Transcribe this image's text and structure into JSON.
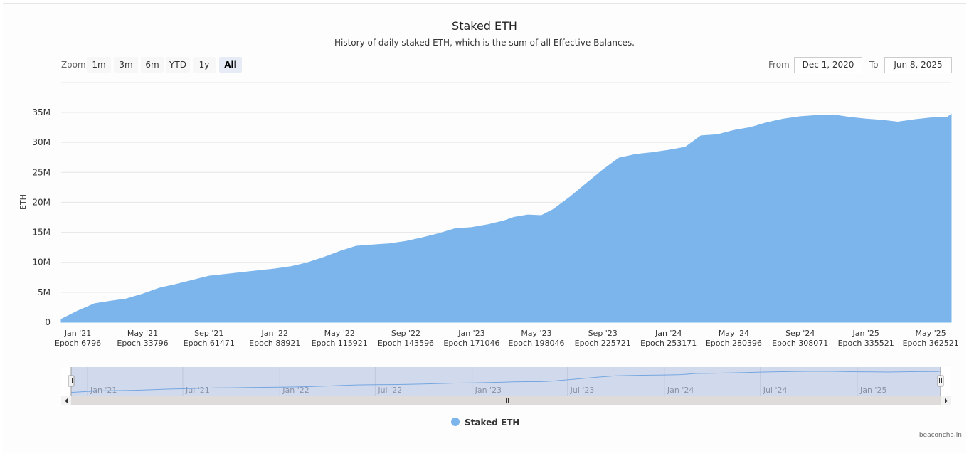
{
  "title": "Staked ETH",
  "subtitle": "History of daily staked ETH, which is the sum of all Effective Balances.",
  "zoom": {
    "label": "Zoom",
    "buttons": [
      "1m",
      "3m",
      "6m",
      "YTD",
      "1y",
      "All"
    ],
    "active": "All"
  },
  "range": {
    "from_label": "From",
    "from_value": "Dec 1, 2020",
    "to_label": "To",
    "to_value": "Jun 8, 2025"
  },
  "legend": {
    "label": "Staked ETH"
  },
  "credit": "beaconcha.in",
  "colors": {
    "series": "#7cb5ec",
    "navigator_mask": "rgba(102,133,194,0.3)",
    "scrollbar": "#e0dbdb"
  },
  "navigator": {
    "labels": [
      "Jan '21",
      "Jul '21",
      "Jan '22",
      "Jul '22",
      "Jan '23",
      "Jul '23",
      "Jan '24",
      "Jul '24",
      "Jan '25"
    ],
    "handle_icon": "grip-lines-icon",
    "arrow_left_icon": "triangle-left-icon",
    "arrow_right_icon": "triangle-right-icon"
  },
  "chart_data": {
    "type": "area",
    "title": "Staked ETH",
    "subtitle": "History of daily staked ETH, which is the sum of all Effective Balances.",
    "ylabel": "ETH",
    "ylim": [
      0,
      35000000
    ],
    "yticks": [
      0,
      5000000,
      10000000,
      15000000,
      20000000,
      25000000,
      30000000,
      35000000
    ],
    "ytick_labels": [
      "0",
      "5M",
      "10M",
      "15M",
      "20M",
      "25M",
      "30M",
      "35M"
    ],
    "xlim": [
      "2020-12-01",
      "2025-06-08"
    ],
    "xticks": [
      {
        "date": "2021-01-01",
        "label": "Jan '21",
        "epoch": "Epoch 6796"
      },
      {
        "date": "2021-05-01",
        "label": "May '21",
        "epoch": "Epoch 33796"
      },
      {
        "date": "2021-09-01",
        "label": "Sep '21",
        "epoch": "Epoch 61471"
      },
      {
        "date": "2022-01-01",
        "label": "Jan '22",
        "epoch": "Epoch 88921"
      },
      {
        "date": "2022-05-01",
        "label": "May '22",
        "epoch": "Epoch 115921"
      },
      {
        "date": "2022-09-01",
        "label": "Sep '22",
        "epoch": "Epoch 143596"
      },
      {
        "date": "2023-01-01",
        "label": "Jan '23",
        "epoch": "Epoch 171046"
      },
      {
        "date": "2023-05-01",
        "label": "May '23",
        "epoch": "Epoch 198046"
      },
      {
        "date": "2023-09-01",
        "label": "Sep '23",
        "epoch": "Epoch 225721"
      },
      {
        "date": "2024-01-01",
        "label": "Jan '24",
        "epoch": "Epoch 253171"
      },
      {
        "date": "2024-05-01",
        "label": "May '24",
        "epoch": "Epoch 280396"
      },
      {
        "date": "2024-09-01",
        "label": "Sep '24",
        "epoch": "Epoch 308071"
      },
      {
        "date": "2025-01-01",
        "label": "Jan '25",
        "epoch": "Epoch 335521"
      },
      {
        "date": "2025-05-01",
        "label": "May '25",
        "epoch": "Epoch 362521"
      }
    ],
    "grid": true,
    "legend": "bottom-center",
    "series": [
      {
        "name": "Staked ETH",
        "color": "#7cb5ec",
        "points": [
          [
            "2020-12-01",
            500000
          ],
          [
            "2021-01-01",
            1900000
          ],
          [
            "2021-02-01",
            3100000
          ],
          [
            "2021-03-01",
            3500000
          ],
          [
            "2021-04-01",
            3900000
          ],
          [
            "2021-05-01",
            4700000
          ],
          [
            "2021-06-01",
            5700000
          ],
          [
            "2021-07-01",
            6300000
          ],
          [
            "2021-08-01",
            7000000
          ],
          [
            "2021-09-01",
            7700000
          ],
          [
            "2021-10-01",
            8000000
          ],
          [
            "2021-11-01",
            8300000
          ],
          [
            "2021-12-01",
            8600000
          ],
          [
            "2022-01-01",
            8900000
          ],
          [
            "2022-02-01",
            9300000
          ],
          [
            "2022-03-01",
            9900000
          ],
          [
            "2022-04-01",
            10800000
          ],
          [
            "2022-05-01",
            11800000
          ],
          [
            "2022-06-01",
            12700000
          ],
          [
            "2022-07-01",
            12900000
          ],
          [
            "2022-08-01",
            13100000
          ],
          [
            "2022-09-01",
            13500000
          ],
          [
            "2022-10-01",
            14100000
          ],
          [
            "2022-11-01",
            14800000
          ],
          [
            "2022-12-01",
            15600000
          ],
          [
            "2023-01-01",
            15800000
          ],
          [
            "2023-02-01",
            16300000
          ],
          [
            "2023-03-01",
            16900000
          ],
          [
            "2023-03-20",
            17500000
          ],
          [
            "2023-04-15",
            17900000
          ],
          [
            "2023-05-10",
            17800000
          ],
          [
            "2023-06-01",
            18800000
          ],
          [
            "2023-07-01",
            20800000
          ],
          [
            "2023-08-01",
            23100000
          ],
          [
            "2023-09-01",
            25400000
          ],
          [
            "2023-10-01",
            27400000
          ],
          [
            "2023-11-01",
            28000000
          ],
          [
            "2023-12-01",
            28300000
          ],
          [
            "2024-01-01",
            28700000
          ],
          [
            "2024-02-01",
            29200000
          ],
          [
            "2024-03-01",
            31100000
          ],
          [
            "2024-04-01",
            31300000
          ],
          [
            "2024-05-01",
            32000000
          ],
          [
            "2024-06-01",
            32500000
          ],
          [
            "2024-07-01",
            33300000
          ],
          [
            "2024-08-01",
            33900000
          ],
          [
            "2024-09-01",
            34300000
          ],
          [
            "2024-10-01",
            34500000
          ],
          [
            "2024-11-01",
            34600000
          ],
          [
            "2024-12-01",
            34200000
          ],
          [
            "2025-01-01",
            33900000
          ],
          [
            "2025-02-01",
            33700000
          ],
          [
            "2025-03-01",
            33400000
          ],
          [
            "2025-04-01",
            33800000
          ],
          [
            "2025-05-01",
            34100000
          ],
          [
            "2025-06-01",
            34200000
          ],
          [
            "2025-06-08",
            34700000
          ]
        ]
      }
    ]
  }
}
